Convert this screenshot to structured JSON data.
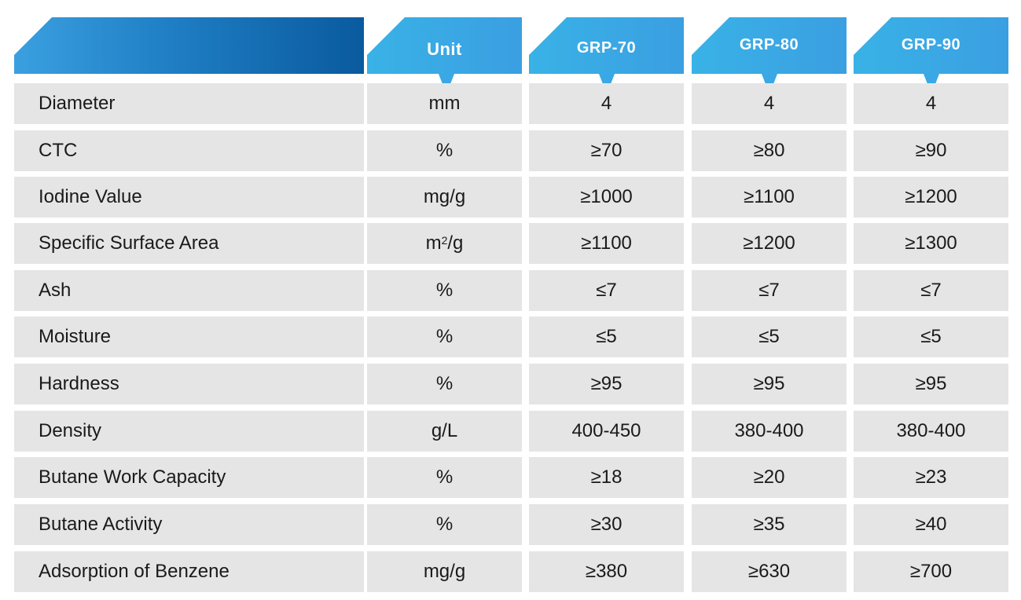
{
  "table": {
    "header": {
      "corner_label": "",
      "unit_label": "Unit",
      "columns": [
        "GRP-70",
        "GRP-80",
        "GRP-90"
      ]
    },
    "rows": [
      {
        "property": "Diameter",
        "unit": "mm",
        "values": [
          "4",
          "4",
          "4"
        ]
      },
      {
        "property": "CTC",
        "unit": "%",
        "values": [
          "≥70",
          "≥80",
          "≥90"
        ]
      },
      {
        "property": "Iodine Value",
        "unit": "mg/g",
        "values": [
          "≥1000",
          "≥1100",
          "≥1200"
        ]
      },
      {
        "property": "Specific Surface Area",
        "unit_base": "m",
        "unit_sup": "2",
        "unit_rest": "/g",
        "values": [
          "≥1100",
          "≥1200",
          "≥1300"
        ]
      },
      {
        "property": "Ash",
        "unit": "%",
        "values": [
          "≤7",
          "≤7",
          "≤7"
        ]
      },
      {
        "property": "Moisture",
        "unit": "%",
        "values": [
          "≤5",
          "≤5",
          "≤5"
        ]
      },
      {
        "property": "Hardness",
        "unit": "%",
        "values": [
          "≥95",
          "≥95",
          "≥95"
        ]
      },
      {
        "property": "Density",
        "unit": "g/L",
        "values": [
          "400-450",
          "380-400",
          "380-400"
        ]
      },
      {
        "property": "Butane Work Capacity",
        "unit": "%",
        "values": [
          "≥18",
          "≥20",
          "≥23"
        ]
      },
      {
        "property": "Butane Activity",
        "unit": "%",
        "values": [
          "≥30",
          "≥35",
          "≥40"
        ]
      },
      {
        "property": "Adsorption of Benzene",
        "unit": "mg/g",
        "values": [
          "≥380",
          "≥630",
          "≥700"
        ]
      }
    ],
    "colors": {
      "header_dark": "#0a5a9e",
      "header_light": "#39b2e6",
      "row_bg": "#e5e5e5",
      "text": "#1a1a1a"
    }
  }
}
